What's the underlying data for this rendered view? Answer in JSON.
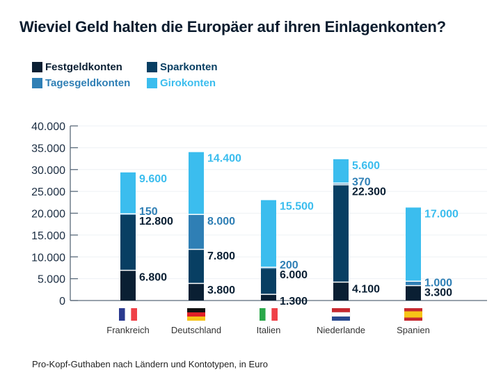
{
  "chart_data": {
    "type": "bar",
    "stacked": true,
    "title": "Wieviel Geld halten die Europäer auf ihren Einlagenkonten?",
    "caption": "Pro-Kopf-Guthaben nach Ländern und Kontotypen, in Euro",
    "categories": [
      "Frankreich",
      "Deutschland",
      "Italien",
      "Niederlande",
      "Spanien"
    ],
    "flags": [
      "fr",
      "de",
      "it",
      "nl",
      "es"
    ],
    "series": [
      {
        "name": "Festgeldkonten",
        "color": "#0a1f33",
        "values": [
          6800,
          3800,
          1300,
          4100,
          3300
        ],
        "labels": [
          "6.800",
          "3.800",
          "1.300",
          "4.100",
          "3.300"
        ]
      },
      {
        "name": "Sparkonten",
        "color": "#083f63",
        "values": [
          12800,
          7800,
          6000,
          22300,
          0
        ],
        "labels": [
          "12.800",
          "7.800",
          "6.000",
          "22.300",
          ""
        ]
      },
      {
        "name": "Tagesgeldkonten",
        "color": "#2f7fb5",
        "values": [
          150,
          8000,
          200,
          370,
          1000
        ],
        "labels": [
          "150",
          "8.000",
          "200",
          "370",
          "1.000"
        ]
      },
      {
        "name": "Girokonten",
        "color": "#3bbdee",
        "values": [
          9600,
          14400,
          15500,
          5600,
          17000
        ],
        "labels": [
          "9.600",
          "14.400",
          "15.500",
          "5.600",
          "17.000"
        ]
      }
    ],
    "label_colors": [
      "#0a1f33",
      "#0a1f33",
      "#2f7fb5",
      "#3bbdee"
    ],
    "ylim": [
      0,
      40000
    ],
    "yticks": [
      0,
      5000,
      10000,
      15000,
      20000,
      25000,
      30000,
      35000,
      40000
    ],
    "ytick_labels": [
      "0",
      "5.000",
      "10.000",
      "15.000",
      "20.000",
      "25.000",
      "30.000",
      "35.000",
      "40.000"
    ],
    "grid": true,
    "legend_position": "top-left"
  }
}
